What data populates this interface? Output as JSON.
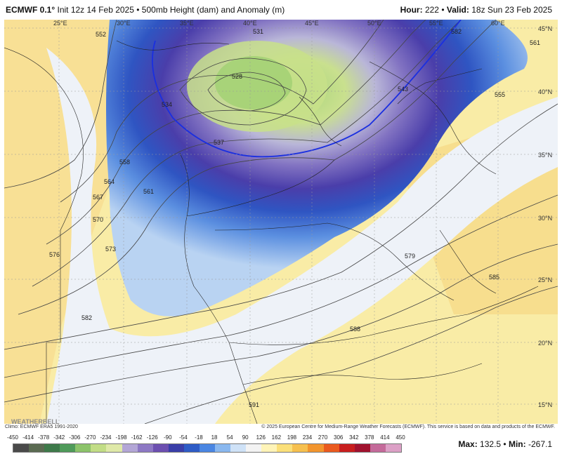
{
  "header": {
    "brand": "ECMWF 0.1°",
    "init": "Init 12z 14 Feb 2025",
    "sep1": "•",
    "product": "500mb Height (dam) and Anomaly (m)",
    "hour_label": "Hour:",
    "hour_value": "222",
    "sep2": "•",
    "valid_label": "Valid:",
    "valid_value": "18z Sun 23 Feb 2025"
  },
  "longitude_ticks": [
    "25°E",
    "30°E",
    "35°E",
    "40°E",
    "45°E",
    "50°E",
    "55°E",
    "60°E"
  ],
  "latitude_ticks": [
    "45°N",
    "40°N",
    "35°N",
    "30°N",
    "25°N",
    "20°N",
    "15°N"
  ],
  "contour_labels": [
    "552",
    "558",
    "564",
    "567",
    "570",
    "573",
    "576",
    "582",
    "588",
    "591",
    "561",
    "537",
    "534",
    "528",
    "531",
    "543",
    "555",
    "561",
    "579",
    "585",
    "582"
  ],
  "credits": {
    "climo": "Climo: ECMWF ERA5 1991-2020",
    "copyright": "© 2025 European Centre for Medium-Range Weather Forecasts (ECMWF). This service is based on data and products of the ECMWF."
  },
  "logo_text": "WEATHERBELL",
  "colorbar": {
    "labels": [
      "-450",
      "-414",
      "-378",
      "-342",
      "-306",
      "-270",
      "-234",
      "-198",
      "-162",
      "-126",
      "-90",
      "-54",
      "-18",
      "18",
      "54",
      "90",
      "126",
      "162",
      "198",
      "234",
      "270",
      "306",
      "342",
      "378",
      "414",
      "450"
    ],
    "colors": [
      "#4a4a4a",
      "#5b6b52",
      "#3e7a4a",
      "#4f9a5a",
      "#8cc36a",
      "#c2dd86",
      "#dfe9a8",
      "#b3a6d6",
      "#8d78c4",
      "#6c4fb0",
      "#3a3ea8",
      "#2e5cc6",
      "#4a86e2",
      "#8ab8ef",
      "#cfe2f7",
      "#f3f3f3",
      "#fff4b8",
      "#fbe07a",
      "#f6c04f",
      "#f2952e",
      "#ea5a1f",
      "#c81e1e",
      "#a0122e",
      "#c46a9a",
      "#dca0c6"
    ]
  },
  "stats": {
    "max_label": "Max:",
    "max_value": "132.5",
    "sep": "•",
    "min_label": "Min:",
    "min_value": "-267.1"
  }
}
